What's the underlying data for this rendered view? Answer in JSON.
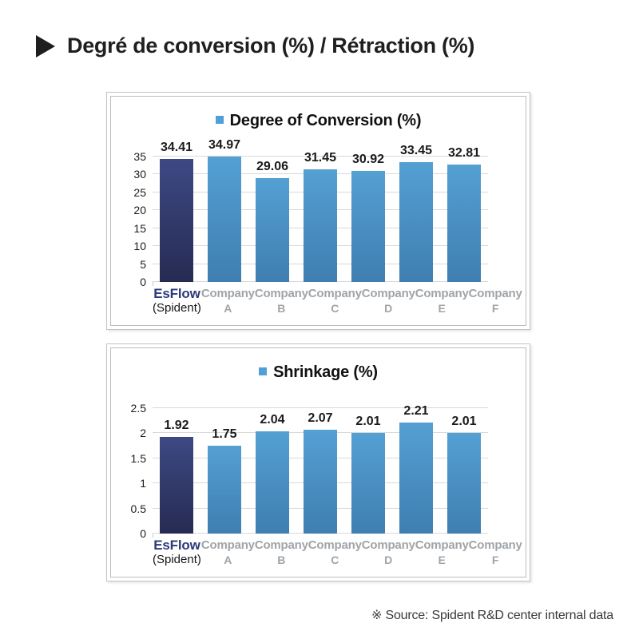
{
  "header": {
    "title": "Degré de conversion (%) / Rétraction (%)"
  },
  "icons": {
    "title_bullet": "black-right-triangle",
    "legend_marker": "blue-square"
  },
  "colors": {
    "bar_top": "#54A0D3",
    "bar_bottom": "#3F7EB0",
    "highlight_top": "#3E4984",
    "highlight_bottom": "#262B52",
    "legend_marker": "#4FA0D6",
    "gridline": "#D9D9D9",
    "category_label": "#A0A4A8",
    "highlight_label": "#2B3A7C"
  },
  "chart_data": [
    {
      "type": "bar",
      "title": "Degree of Conversion (%)",
      "legend_position": "top-center",
      "grid": true,
      "ylim": [
        0,
        35
      ],
      "ytick_step": 5,
      "highlight_index": 0,
      "categories": [
        [
          "EsFlow",
          "(Spident)"
        ],
        [
          "Company",
          "A"
        ],
        [
          "Company",
          "B"
        ],
        [
          "Company",
          "C"
        ],
        [
          "Company",
          "D"
        ],
        [
          "Company",
          "E"
        ],
        [
          "Company",
          "F"
        ]
      ],
      "values": [
        34.41,
        34.97,
        29.06,
        31.45,
        30.92,
        33.45,
        32.81
      ],
      "value_labels": [
        "34.41",
        "34.97",
        "29.06",
        "31.45",
        "30.92",
        "33.45",
        "32.81"
      ]
    },
    {
      "type": "bar",
      "title": "Shrinkage (%)",
      "legend_position": "top-center",
      "grid": true,
      "ylim": [
        0,
        2.5
      ],
      "ytick_step": 0.5,
      "highlight_index": 0,
      "categories": [
        [
          "EsFlow",
          "(Spident)"
        ],
        [
          "Company",
          "A"
        ],
        [
          "Company",
          "B"
        ],
        [
          "Company",
          "C"
        ],
        [
          "Company",
          "D"
        ],
        [
          "Company",
          "E"
        ],
        [
          "Company",
          "F"
        ]
      ],
      "values": [
        1.92,
        1.75,
        2.04,
        2.07,
        2.01,
        2.21,
        2.01
      ],
      "value_labels": [
        "1.92",
        "1.75",
        "2.04",
        "2.07",
        "2.01",
        "2.21",
        "2.01"
      ]
    }
  ],
  "footer": {
    "source_note": "※ Source: Spident R&D center internal data"
  }
}
